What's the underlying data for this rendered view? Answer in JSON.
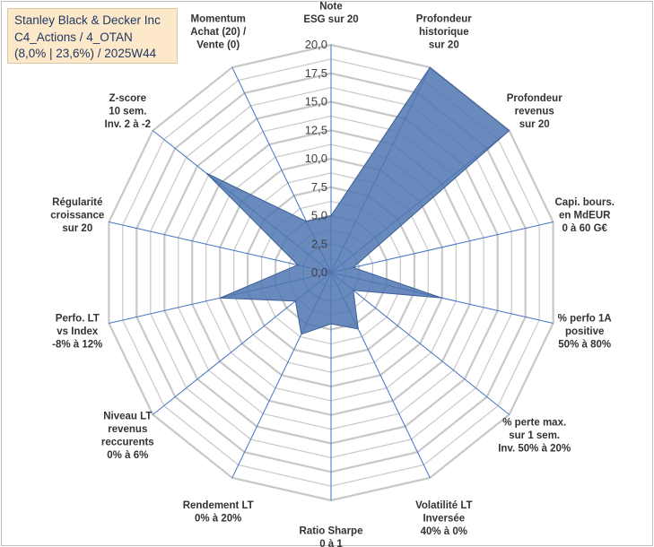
{
  "chart_data": {
    "type": "radar",
    "title_lines": [
      "Stanley Black & Decker Inc",
      "C4_Actions / 4_OTAN",
      "(8,0% | 23,6%) / 2025W44"
    ],
    "rmin": 0,
    "rmax": 20,
    "ticks": [
      "0,0",
      "2,5",
      "5,0",
      "7,5",
      "10,0",
      "12,5",
      "15,0",
      "17,5",
      "20,0"
    ],
    "ring_step": 1.25,
    "axes": [
      {
        "lines": [
          "Note",
          "ESG sur 20"
        ],
        "value": 5.0
      },
      {
        "lines": [
          "Profondeur",
          "historique",
          "sur 20"
        ],
        "value": 20.0
      },
      {
        "lines": [
          "Profondeur",
          "revenus",
          "sur 20"
        ],
        "value": 20.0
      },
      {
        "lines": [
          "Capi. bours.",
          "en MdEUR",
          "0 à 60 G€"
        ],
        "value": 2.0
      },
      {
        "lines": [
          "% perfo 1A",
          "positive",
          "50% à 80%"
        ],
        "value": 10.0
      },
      {
        "lines": [
          "% perte max.",
          "sur 1 sem.",
          "Inv. 50% à 20%"
        ],
        "value": 2.5
      },
      {
        "lines": [
          "Volatilité LT",
          "Inversée",
          "40% à 0%"
        ],
        "value": 5.5
      },
      {
        "lines": [
          "Ratio Sharpe",
          "0 à 1"
        ],
        "value": 4.5
      },
      {
        "lines": [
          "Rendement LT",
          "0% à 20%"
        ],
        "value": 6.0
      },
      {
        "lines": [
          "Niveau LT",
          "revenus",
          "reccurents",
          "0% à 6%"
        ],
        "value": 4.0
      },
      {
        "lines": [
          "Perfo. LT",
          "vs Index",
          "-8% à 12%"
        ],
        "value": 10.0
      },
      {
        "lines": [
          "Régularité",
          "croissance",
          "sur 20"
        ],
        "value": 3.0
      },
      {
        "lines": [
          "Z-score",
          "10 sem.",
          "Inv. 2 à -2"
        ],
        "value": 14.0
      },
      {
        "lines": [
          "Momentum",
          "Achat (20) /",
          "Vente (0)"
        ],
        "value": 5.0
      }
    ],
    "colors": {
      "fill": "#4f76b0",
      "stroke": "#3b5f96",
      "grid": "#c8c8c8",
      "spoke": "#4472c4"
    }
  }
}
